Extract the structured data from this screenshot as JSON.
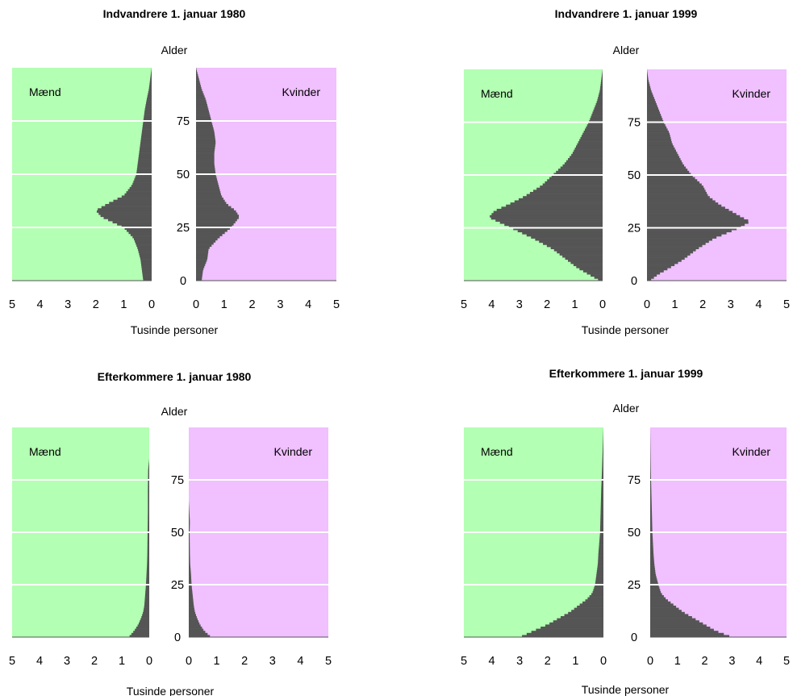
{
  "charts": [
    {
      "title": "Indvandrere 1. januar 1980",
      "ylabel": "Alder",
      "xlabel": "Tusinde personer",
      "left_label": "Mænd",
      "right_label": "Kvinder"
    },
    {
      "title": "Indvandrere 1. januar 1999",
      "ylabel": "Alder",
      "xlabel": "Tusinde personer",
      "left_label": "Mænd",
      "right_label": "Kvinder"
    },
    {
      "title": "Efterkommere 1. januar 1980",
      "ylabel": "Alder",
      "xlabel": "Tusinde personer",
      "left_label": "Mænd",
      "right_label": "Kvinder"
    },
    {
      "title": "Efterkommere 1. januar 1999",
      "ylabel": "Alder",
      "xlabel": "Tusinde personer",
      "left_label": "Mænd",
      "right_label": "Kvinder"
    }
  ],
  "colors": {
    "men_bg": "#b3ffb3",
    "women_bg": "#f0c0ff",
    "bars": "#555555",
    "grid": "#ffffff"
  },
  "chart_data": [
    {
      "type": "bar",
      "title": "Indvandrere 1. januar 1980",
      "xlabel": "Tusinde personer",
      "ylabel": "Alder",
      "age_ticks": [
        0,
        25,
        50,
        75
      ],
      "ylim": [
        0,
        100
      ],
      "x_ticks_left": [
        5,
        4,
        3,
        2,
        1,
        0
      ],
      "x_ticks_right": [
        0,
        1,
        2,
        3,
        4,
        5
      ],
      "xlim": [
        0,
        5
      ],
      "series": [
        {
          "name": "Mænd",
          "ages": [
            0,
            5,
            10,
            15,
            20,
            25,
            30,
            33,
            36,
            40,
            45,
            50,
            55,
            60,
            65,
            70,
            75,
            80,
            85,
            90,
            95,
            100
          ],
          "values": [
            0.3,
            0.35,
            0.4,
            0.5,
            0.65,
            1.0,
            1.8,
            2.0,
            1.6,
            1.0,
            0.7,
            0.55,
            0.5,
            0.45,
            0.4,
            0.35,
            0.3,
            0.25,
            0.18,
            0.1,
            0.05,
            0
          ]
        },
        {
          "name": "Kvinder",
          "ages": [
            0,
            5,
            10,
            15,
            20,
            25,
            30,
            33,
            36,
            40,
            45,
            50,
            55,
            60,
            65,
            70,
            75,
            80,
            85,
            90,
            95,
            100
          ],
          "values": [
            0.2,
            0.25,
            0.4,
            0.45,
            0.8,
            1.25,
            1.55,
            1.4,
            1.1,
            0.9,
            0.8,
            0.7,
            0.65,
            0.65,
            0.7,
            0.65,
            0.55,
            0.45,
            0.35,
            0.2,
            0.1,
            0
          ]
        }
      ]
    },
    {
      "type": "bar",
      "title": "Indvandrere 1. januar 1999",
      "xlabel": "Tusinde personer",
      "ylabel": "Alder",
      "age_ticks": [
        0,
        25,
        50,
        75
      ],
      "ylim": [
        0,
        100
      ],
      "x_ticks_left": [
        5,
        4,
        3,
        2,
        1,
        0
      ],
      "x_ticks_right": [
        0,
        1,
        2,
        3,
        4,
        5
      ],
      "xlim": [
        0,
        5
      ],
      "series": [
        {
          "name": "Mænd",
          "ages": [
            0,
            3,
            6,
            10,
            15,
            20,
            25,
            30,
            33,
            36,
            40,
            45,
            50,
            55,
            60,
            65,
            70,
            75,
            80,
            85,
            90,
            95,
            100
          ],
          "values": [
            0.1,
            0.5,
            0.9,
            1.3,
            1.8,
            2.5,
            3.3,
            4.1,
            3.9,
            3.4,
            2.8,
            2.2,
            1.8,
            1.4,
            1.1,
            0.9,
            0.7,
            0.5,
            0.35,
            0.2,
            0.1,
            0.05,
            0
          ]
        },
        {
          "name": "Kvinder",
          "ages": [
            0,
            3,
            6,
            10,
            15,
            20,
            25,
            28,
            30,
            33,
            36,
            40,
            45,
            50,
            55,
            60,
            65,
            70,
            75,
            80,
            85,
            90,
            95,
            100
          ],
          "values": [
            0.1,
            0.4,
            0.8,
            1.3,
            1.8,
            2.4,
            3.3,
            3.7,
            3.4,
            3.0,
            2.6,
            2.2,
            2.0,
            1.6,
            1.3,
            1.1,
            0.9,
            0.8,
            0.6,
            0.45,
            0.3,
            0.15,
            0.05,
            0
          ]
        }
      ]
    },
    {
      "type": "bar",
      "title": "Efterkommere 1. januar 1980",
      "xlabel": "Tusinde personer",
      "ylabel": "Alder",
      "age_ticks": [
        0,
        25,
        50,
        75
      ],
      "ylim": [
        0,
        100
      ],
      "x_ticks_left": [
        5,
        4,
        3,
        2,
        1,
        0
      ],
      "x_ticks_right": [
        0,
        1,
        2,
        3,
        4,
        5
      ],
      "xlim": [
        0,
        5
      ],
      "series": [
        {
          "name": "Mænd",
          "ages": [
            0,
            3,
            6,
            9,
            12,
            15,
            20,
            25,
            30,
            35,
            40,
            50,
            60,
            70,
            80,
            85,
            100
          ],
          "values": [
            0.75,
            0.55,
            0.4,
            0.3,
            0.22,
            0.18,
            0.15,
            0.12,
            0.1,
            0.08,
            0.07,
            0.06,
            0.05,
            0.05,
            0.04,
            0,
            0
          ]
        },
        {
          "name": "Kvinder",
          "ages": [
            0,
            3,
            6,
            9,
            12,
            15,
            20,
            25,
            30,
            35,
            40,
            50,
            55,
            60,
            65,
            100
          ],
          "values": [
            0.8,
            0.55,
            0.4,
            0.3,
            0.22,
            0.18,
            0.14,
            0.1,
            0.08,
            0.05,
            0.04,
            0.03,
            0.04,
            0.02,
            0,
            0
          ]
        }
      ]
    },
    {
      "type": "bar",
      "title": "Efterkommere 1. januar 1999",
      "xlabel": "Tusinde personer",
      "ylabel": "Alder",
      "age_ticks": [
        0,
        25,
        50,
        75
      ],
      "ylim": [
        0,
        100
      ],
      "x_ticks_left": [
        5,
        4,
        3,
        2,
        1,
        0
      ],
      "x_ticks_right": [
        0,
        1,
        2,
        3,
        4,
        5
      ],
      "xlim": [
        0,
        5
      ],
      "series": [
        {
          "name": "Mænd",
          "ages": [
            0,
            3,
            6,
            9,
            12,
            15,
            18,
            21,
            25,
            30,
            35,
            40,
            45,
            50,
            60,
            70,
            80,
            100
          ],
          "values": [
            3.0,
            2.5,
            2.0,
            1.6,
            1.2,
            0.9,
            0.6,
            0.4,
            0.3,
            0.25,
            0.2,
            0.18,
            0.15,
            0.12,
            0.1,
            0.08,
            0.05,
            0
          ]
        },
        {
          "name": "Kvinder",
          "ages": [
            0,
            3,
            6,
            9,
            12,
            15,
            18,
            21,
            25,
            30,
            35,
            40,
            45,
            50,
            60,
            70,
            80,
            100
          ],
          "values": [
            3.0,
            2.4,
            2.0,
            1.6,
            1.2,
            0.9,
            0.6,
            0.4,
            0.3,
            0.2,
            0.15,
            0.12,
            0.1,
            0.08,
            0.06,
            0.04,
            0.02,
            0
          ]
        }
      ]
    }
  ]
}
